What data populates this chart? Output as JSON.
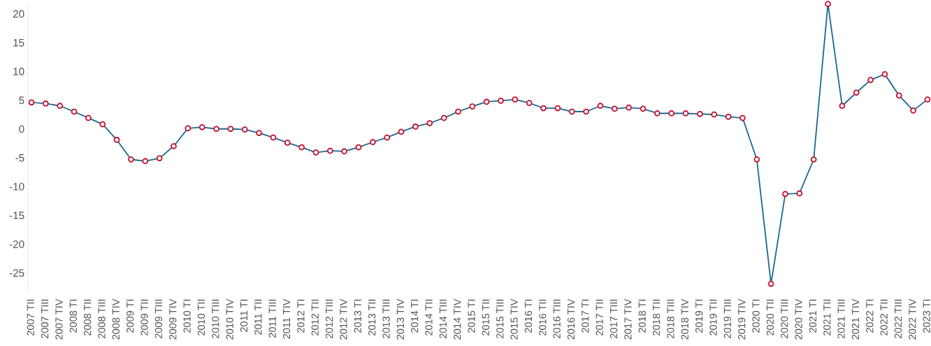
{
  "chart_data": {
    "type": "line",
    "categories": [
      "2007 TII",
      "2007 TIII",
      "2007 TIV",
      "2008 TI",
      "2008 TII",
      "2008 TIII",
      "2008 TIV",
      "2009 TI",
      "2009 TII",
      "2009 TIII",
      "2009 TIV",
      "2010 TI",
      "2010 TII",
      "2010 TIII",
      "2010 TIV",
      "2011 TI",
      "2011 TII",
      "2011 TIII",
      "2011 TIV",
      "2012 TI",
      "2012 TII",
      "2012 TIII",
      "2012 TIV",
      "2013 TI",
      "2013 TII",
      "2013 TIII",
      "2013 TIV",
      "2014 TI",
      "2014 TII",
      "2014 TIII",
      "2014 TIV",
      "2015 TI",
      "2015 TII",
      "2015 TIII",
      "2015 TIV",
      "2016 TI",
      "2016 TII",
      "2016 TIII",
      "2016 TIV",
      "2017 TI",
      "2017 TII",
      "2017 TIII",
      "2017 TIV",
      "2018 TI",
      "2018 TII",
      "2018 TIII",
      "2018 TIV",
      "2019 TI",
      "2019 TII",
      "2019 TIII",
      "2019 TIV",
      "2020 TI",
      "2020 TII",
      "2020 TIII",
      "2020 TIV",
      "2021 TI",
      "2021 TII",
      "2021 TIII",
      "2021 TIV",
      "2022 TI",
      "2022 TII",
      "2022 TIII",
      "2022 TIV",
      "2023 TI"
    ],
    "series": [
      {
        "color": "#1a6a8f",
        "values": [
          4.6,
          4.4,
          4.0,
          3.0,
          1.9,
          0.8,
          -1.9,
          -5.3,
          -5.6,
          -5.1,
          -3.0,
          0.1,
          0.3,
          0.0,
          0.0,
          -0.1,
          -0.7,
          -1.5,
          -2.4,
          -3.2,
          -4.1,
          -3.8,
          -3.9,
          -3.2,
          -2.3,
          -1.5,
          -0.5,
          0.4,
          1.0,
          1.9,
          3.0,
          3.9,
          4.7,
          4.9,
          5.1,
          4.5,
          3.6,
          3.6,
          3.0,
          3.0,
          4.0,
          3.5,
          3.7,
          3.5,
          2.7,
          2.7,
          2.7,
          2.6,
          2.5,
          2.1,
          1.9,
          -5.3,
          -26.9,
          -11.3,
          -11.2,
          -5.3,
          21.7,
          4.0,
          6.3,
          8.5,
          9.5,
          5.8,
          3.2,
          5.1
        ]
      }
    ],
    "ylim": [
      -28.5,
      21.9
    ],
    "yticks": [
      -25,
      -20,
      -15,
      -10,
      -5,
      0,
      5,
      10,
      15,
      20
    ],
    "marker": "circle",
    "line_style": "solid",
    "grid": false
  }
}
